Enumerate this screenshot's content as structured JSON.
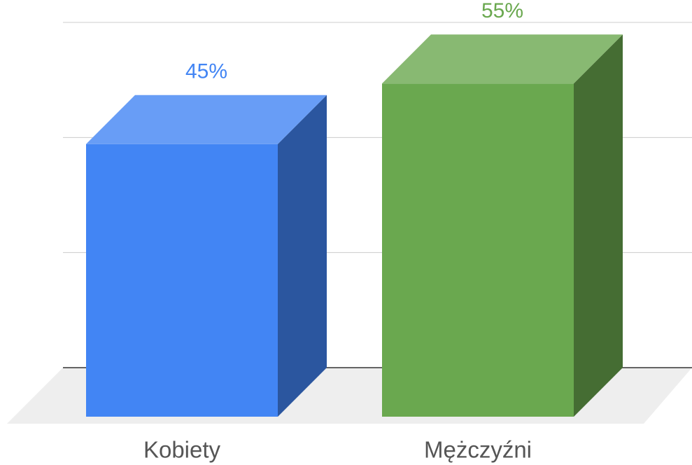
{
  "chart_data": {
    "type": "bar3d",
    "categories": [
      "Kobiety",
      "Mężczyźni"
    ],
    "values": [
      45,
      55
    ],
    "value_labels": [
      "45%",
      "55%"
    ],
    "colors": [
      "#4285f4",
      "#6aa84f"
    ],
    "ylim": [
      0,
      57
    ],
    "yticks": [
      0,
      19,
      38,
      57
    ],
    "grid": true
  }
}
